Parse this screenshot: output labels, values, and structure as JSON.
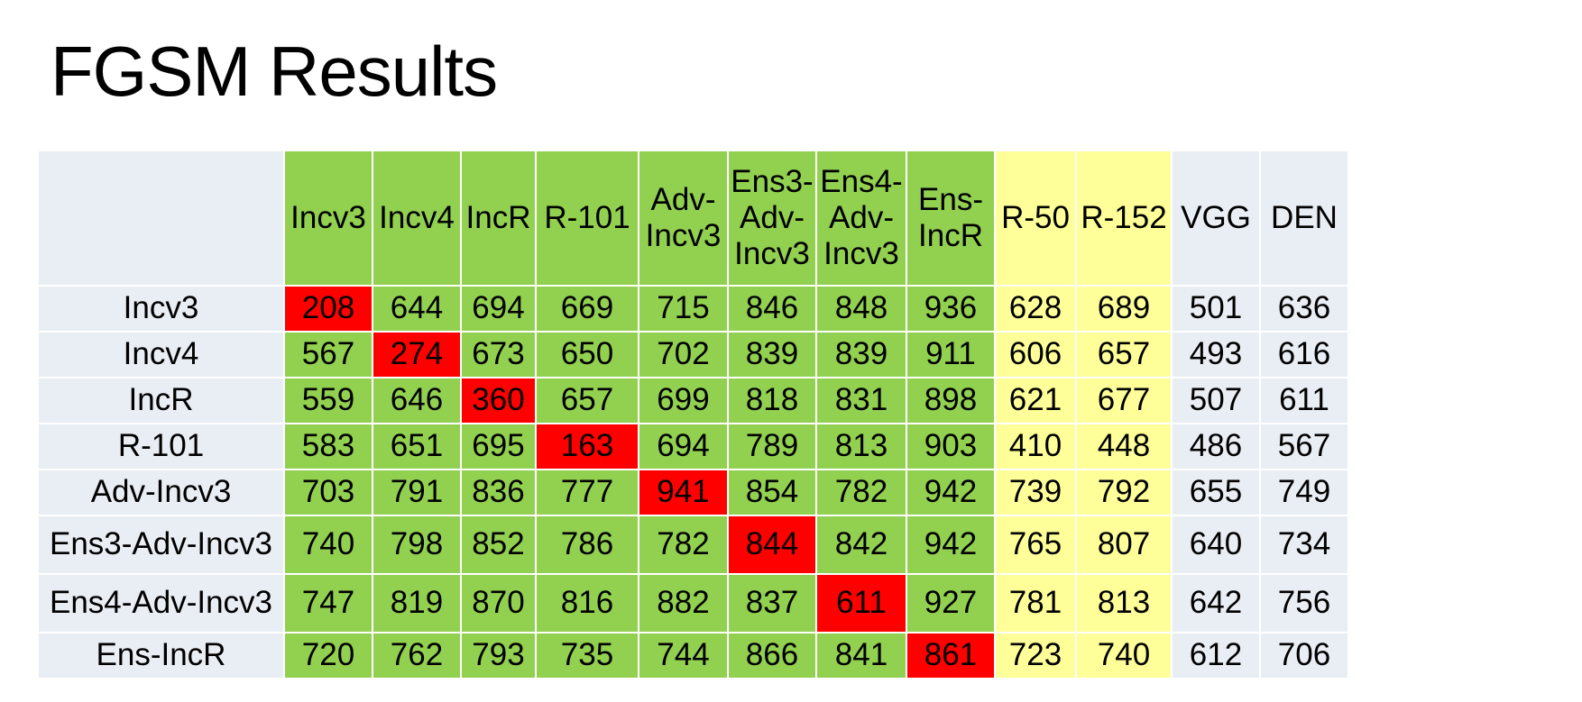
{
  "title": "FGSM Results",
  "table": {
    "columns": [
      "Incv3",
      "Incv4",
      "IncR",
      "R-101",
      "Adv-Incv3",
      "Ens3-Adv-Incv3",
      "Ens4-Adv-Incv3",
      "Ens-IncR",
      "R-50",
      "R-152",
      "VGG",
      "DEN"
    ],
    "rows": [
      {
        "label": "Incv3",
        "values": [
          208,
          644,
          694,
          669,
          715,
          846,
          848,
          936,
          628,
          689,
          501,
          636
        ]
      },
      {
        "label": "Incv4",
        "values": [
          567,
          274,
          673,
          650,
          702,
          839,
          839,
          911,
          606,
          657,
          493,
          616
        ]
      },
      {
        "label": "IncR",
        "values": [
          559,
          646,
          360,
          657,
          699,
          818,
          831,
          898,
          621,
          677,
          507,
          611
        ]
      },
      {
        "label": "R-101",
        "values": [
          583,
          651,
          695,
          163,
          694,
          789,
          813,
          903,
          410,
          448,
          486,
          567
        ]
      },
      {
        "label": "Adv-Incv3",
        "values": [
          703,
          791,
          836,
          777,
          941,
          854,
          782,
          942,
          739,
          792,
          655,
          749
        ]
      },
      {
        "label": "Ens3-Adv-Incv3",
        "values": [
          740,
          798,
          852,
          786,
          782,
          844,
          842,
          942,
          765,
          807,
          640,
          734
        ]
      },
      {
        "label": "Ens4-Adv-Incv3",
        "values": [
          747,
          819,
          870,
          816,
          882,
          837,
          611,
          927,
          781,
          813,
          642,
          756
        ]
      },
      {
        "label": "Ens-IncR",
        "values": [
          720,
          762,
          793,
          735,
          744,
          866,
          841,
          861,
          723,
          740,
          612,
          706
        ]
      }
    ]
  }
}
